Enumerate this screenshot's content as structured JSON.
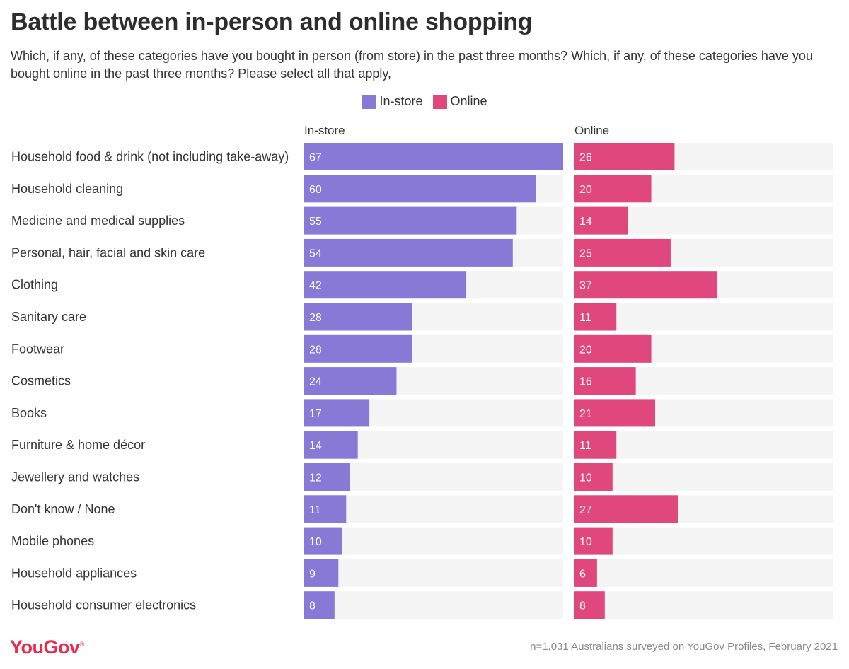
{
  "title": "Battle between in-person and online shopping",
  "subtitle": "Which, if any, of these categories have you bought in person (from store) in the past three months? Which, if any, of these categories have you bought online in the past three months? Please select all that apply,",
  "legend": [
    {
      "label": "In-store",
      "color": "#8879d6"
    },
    {
      "label": "Online",
      "color": "#e0477c"
    }
  ],
  "footer": {
    "logo": "YouGov",
    "note": "n=1,031 Australians surveyed on YouGov Profiles, February 2021"
  },
  "chart_data": {
    "type": "bar",
    "orientation": "horizontal",
    "panels": [
      "In-store",
      "Online"
    ],
    "xlim": [
      0,
      67
    ],
    "grid": false,
    "legend_position": "top-center",
    "track_color": "#f4f4f5",
    "categories": [
      "Household food & drink (not including take-away)",
      "Household cleaning",
      "Medicine and medical supplies",
      "Personal, hair, facial and skin care",
      "Clothing",
      "Sanitary care",
      "Footwear",
      "Cosmetics",
      "Books",
      "Furniture & home décor",
      "Jewellery and watches",
      "Don't know / None",
      "Mobile phones",
      "Household appliances",
      "Household consumer electronics"
    ],
    "series": [
      {
        "name": "In-store",
        "color": "#8879d6",
        "values": [
          67,
          60,
          55,
          54,
          42,
          28,
          28,
          24,
          17,
          14,
          12,
          11,
          10,
          9,
          8
        ]
      },
      {
        "name": "Online",
        "color": "#e0477c",
        "values": [
          26,
          20,
          14,
          25,
          37,
          11,
          20,
          16,
          21,
          11,
          10,
          27,
          10,
          6,
          8
        ]
      }
    ]
  }
}
